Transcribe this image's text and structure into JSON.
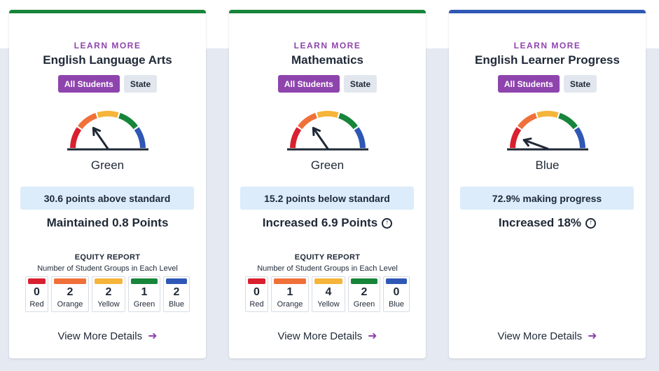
{
  "colors": {
    "purple": "#8e44ad",
    "red": "#d9202e",
    "orange": "#f0703a",
    "yellow": "#f5b43a",
    "green": "#17853a",
    "blue": "#2f57b5"
  },
  "cards": [
    {
      "top_color": "#17853a",
      "learn_more": "LEARN MORE",
      "title": "English Language Arts",
      "toggle_all": "All Students",
      "toggle_state": "State",
      "gauge_level": "green",
      "level_label": "Green",
      "status": "30.6 points above standard",
      "change": "Maintained 0.8 Points",
      "change_arrow": false,
      "equity": {
        "title": "EQUITY REPORT",
        "subtitle": "Number of Student Groups in Each Level",
        "levels": [
          {
            "count": "0",
            "name": "Red",
            "color": "#d9202e"
          },
          {
            "count": "2",
            "name": "Orange",
            "color": "#f0703a"
          },
          {
            "count": "2",
            "name": "Yellow",
            "color": "#f5b43a"
          },
          {
            "count": "1",
            "name": "Green",
            "color": "#17853a"
          },
          {
            "count": "2",
            "name": "Blue",
            "color": "#2f57b5"
          }
        ]
      },
      "view_more": "View More Details"
    },
    {
      "top_color": "#17853a",
      "learn_more": "LEARN MORE",
      "title": "Mathematics",
      "toggle_all": "All Students",
      "toggle_state": "State",
      "gauge_level": "green",
      "level_label": "Green",
      "status": "15.2 points below standard",
      "change": "Increased 6.9 Points",
      "change_arrow": true,
      "equity": {
        "title": "EQUITY REPORT",
        "subtitle": "Number of Student Groups in Each Level",
        "levels": [
          {
            "count": "0",
            "name": "Red",
            "color": "#d9202e"
          },
          {
            "count": "1",
            "name": "Orange",
            "color": "#f0703a"
          },
          {
            "count": "4",
            "name": "Yellow",
            "color": "#f5b43a"
          },
          {
            "count": "2",
            "name": "Green",
            "color": "#17853a"
          },
          {
            "count": "0",
            "name": "Blue",
            "color": "#2f57b5"
          }
        ]
      },
      "view_more": "View More Details"
    },
    {
      "top_color": "#2f57b5",
      "learn_more": "LEARN MORE",
      "title": "English Learner Progress",
      "toggle_all": "All Students",
      "toggle_state": "State",
      "gauge_level": "blue",
      "level_label": "Blue",
      "status": "72.9% making progress",
      "change": "Increased 18%",
      "change_arrow": true,
      "equity": null,
      "view_more": "View More Details"
    }
  ]
}
